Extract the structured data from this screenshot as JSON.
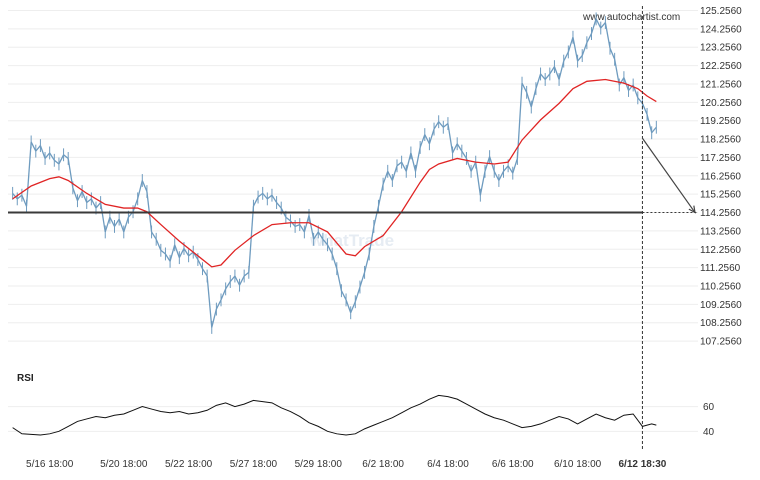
{
  "watermark": {
    "site": "www.autochartist.com",
    "logo": "whatTrade"
  },
  "colors": {
    "price_line": "#6e9bbf",
    "moving_average": "#e02424",
    "support_line": "#3a3a3a",
    "rsi_line": "#111111",
    "forecast_arrow": "#444444",
    "grid": "#eeeeee"
  },
  "chart_data": [
    {
      "type": "line",
      "title": "",
      "xlabel": "",
      "ylabel": "",
      "ylim": [
        106.5,
        125.5
      ],
      "y_ticks": [
        "125.2560",
        "124.2560",
        "123.2560",
        "122.2560",
        "121.2560",
        "120.2560",
        "119.2560",
        "118.2560",
        "117.2560",
        "116.2560",
        "115.2560",
        "114.2560",
        "113.2560",
        "112.2560",
        "111.2560",
        "110.2560",
        "109.2560",
        "108.2560",
        "107.2560"
      ],
      "x_tick_labels": [
        "5/16 18:00",
        "5/20 18:00",
        "5/22 18:00",
        "5/27 18:00",
        "5/29 18:00",
        "6/2 18:00",
        "6/4 18:00",
        "6/6 18:00",
        "6/10 18:00",
        "6/12 18:30"
      ],
      "x_tick_positions": [
        2,
        10,
        17,
        24,
        31,
        38,
        45,
        52,
        59,
        66
      ],
      "x_range": [
        -2.5,
        72
      ],
      "current_bar": 66,
      "support_level": 114.256,
      "forecast": {
        "from": [
          66,
          118.3
        ],
        "to": [
          72,
          114.256
        ]
      },
      "series": [
        {
          "values": [
            [
              -2,
              115.3
            ],
            [
              -1.5,
              115.0
            ],
            [
              -1,
              115.2
            ],
            [
              -0.5,
              114.6
            ],
            [
              0,
              118.1
            ],
            [
              0.5,
              117.6
            ],
            [
              1,
              117.9
            ],
            [
              1.5,
              117.2
            ],
            [
              2,
              117.5
            ],
            [
              2.5,
              117.1
            ],
            [
              3,
              116.9
            ],
            [
              3.5,
              117.4
            ],
            [
              4,
              117.2
            ],
            [
              4.5,
              115.6
            ],
            [
              5,
              114.9
            ],
            [
              5.5,
              115.4
            ],
            [
              6,
              114.8
            ],
            [
              6.5,
              115.0
            ],
            [
              7,
              114.5
            ],
            [
              7.5,
              114.8
            ],
            [
              8,
              113.2
            ],
            [
              8.5,
              114.0
            ],
            [
              9,
              113.5
            ],
            [
              9.5,
              113.9
            ],
            [
              10,
              113.2
            ],
            [
              10.5,
              114.0
            ],
            [
              11,
              114.3
            ],
            [
              11.5,
              115.0
            ],
            [
              12,
              116.0
            ],
            [
              12.5,
              115.4
            ],
            [
              13,
              113.2
            ],
            [
              13.5,
              112.8
            ],
            [
              14,
              112.2
            ],
            [
              14.5,
              112.0
            ],
            [
              15,
              111.6
            ],
            [
              15.5,
              112.5
            ],
            [
              16,
              111.8
            ],
            [
              16.5,
              112.3
            ],
            [
              17,
              111.9
            ],
            [
              17.5,
              112.1
            ],
            [
              18,
              111.7
            ],
            [
              18.5,
              111.2
            ],
            [
              19,
              110.8
            ],
            [
              19.5,
              108.0
            ],
            [
              20,
              109.0
            ],
            [
              20.5,
              109.5
            ],
            [
              21,
              110.1
            ],
            [
              21.5,
              110.5
            ],
            [
              22,
              110.8
            ],
            [
              22.5,
              110.3
            ],
            [
              23,
              110.8
            ],
            [
              23.5,
              111.0
            ],
            [
              24,
              114.6
            ],
            [
              24.5,
              115.1
            ],
            [
              25,
              115.3
            ],
            [
              25.5,
              115.0
            ],
            [
              26,
              115.2
            ],
            [
              26.5,
              114.8
            ],
            [
              27,
              114.5
            ],
            [
              27.5,
              114.0
            ],
            [
              28,
              113.8
            ],
            [
              28.5,
              113.5
            ],
            [
              29,
              113.6
            ],
            [
              29.5,
              113.2
            ],
            [
              30,
              114.1
            ],
            [
              30.5,
              112.8
            ],
            [
              31,
              113.2
            ],
            [
              31.5,
              112.8
            ],
            [
              32,
              112.5
            ],
            [
              32.5,
              112.0
            ],
            [
              33,
              111.2
            ],
            [
              33.5,
              110.0
            ],
            [
              34,
              109.5
            ],
            [
              34.5,
              108.8
            ],
            [
              35,
              109.4
            ],
            [
              35.5,
              110.2
            ],
            [
              36,
              111.0
            ],
            [
              36.5,
              112.0
            ],
            [
              37,
              113.5
            ],
            [
              37.5,
              114.6
            ],
            [
              38,
              115.8
            ],
            [
              38.5,
              116.5
            ],
            [
              39,
              116.0
            ],
            [
              39.5,
              116.8
            ],
            [
              40,
              117.0
            ],
            [
              40.5,
              116.5
            ],
            [
              41,
              117.5
            ],
            [
              41.5,
              116.5
            ],
            [
              42,
              117.8
            ],
            [
              42.5,
              118.5
            ],
            [
              43,
              118.0
            ],
            [
              43.5,
              118.8
            ],
            [
              44,
              119.2
            ],
            [
              44.5,
              118.9
            ],
            [
              45,
              119.1
            ],
            [
              45.5,
              117.5
            ],
            [
              46,
              118.0
            ],
            [
              46.5,
              117.6
            ],
            [
              47,
              117.2
            ],
            [
              47.5,
              116.5
            ],
            [
              48,
              117.0
            ],
            [
              48.5,
              115.2
            ],
            [
              49,
              116.5
            ],
            [
              49.5,
              117.3
            ],
            [
              50,
              116.5
            ],
            [
              50.5,
              116.0
            ],
            [
              51,
              116.5
            ],
            [
              51.5,
              116.8
            ],
            [
              52,
              116.4
            ],
            [
              52.5,
              117.2
            ],
            [
              53,
              121.3
            ],
            [
              53.5,
              120.8
            ],
            [
              54,
              120.0
            ],
            [
              54.5,
              121.0
            ],
            [
              55,
              121.8
            ],
            [
              55.5,
              121.5
            ],
            [
              56,
              121.8
            ],
            [
              56.5,
              122.2
            ],
            [
              57,
              121.5
            ],
            [
              57.5,
              122.5
            ],
            [
              58,
              123.0
            ],
            [
              58.5,
              123.8
            ],
            [
              59,
              122.5
            ],
            [
              59.5,
              122.8
            ],
            [
              60,
              123.5
            ],
            [
              60.5,
              124.0
            ],
            [
              61,
              124.8
            ],
            [
              61.5,
              124.3
            ],
            [
              62,
              124.6
            ],
            [
              62.5,
              123.2
            ],
            [
              63,
              122.6
            ],
            [
              63.5,
              121.2
            ],
            [
              64,
              121.6
            ],
            [
              64.5,
              120.9
            ],
            [
              65,
              121.2
            ],
            [
              65.5,
              120.5
            ],
            [
              66,
              120.2
            ],
            [
              66.5,
              119.6
            ],
            [
              67,
              118.6
            ],
            [
              67.5,
              118.9
            ]
          ]
        },
        {
          "values": [
            [
              -2,
              115.0
            ],
            [
              0,
              115.7
            ],
            [
              2,
              116.1
            ],
            [
              3,
              116.2
            ],
            [
              4,
              116.0
            ],
            [
              6,
              115.3
            ],
            [
              8,
              114.7
            ],
            [
              10,
              114.5
            ],
            [
              11.5,
              114.5
            ],
            [
              12.5,
              114.3
            ],
            [
              14,
              113.6
            ],
            [
              16,
              112.7
            ],
            [
              18,
              111.9
            ],
            [
              19.5,
              111.3
            ],
            [
              20.5,
              111.4
            ],
            [
              22,
              112.2
            ],
            [
              24,
              113.0
            ],
            [
              26,
              113.6
            ],
            [
              28,
              113.7
            ],
            [
              30,
              113.7
            ],
            [
              32,
              113.2
            ],
            [
              33,
              112.6
            ],
            [
              34,
              112.0
            ],
            [
              35,
              111.9
            ],
            [
              36,
              112.4
            ],
            [
              38,
              113.0
            ],
            [
              40,
              114.3
            ],
            [
              42,
              115.9
            ],
            [
              43,
              116.6
            ],
            [
              44,
              116.9
            ],
            [
              46,
              117.2
            ],
            [
              48,
              117.0
            ],
            [
              50,
              116.9
            ],
            [
              51.5,
              117.0
            ],
            [
              53,
              118.2
            ],
            [
              55,
              119.3
            ],
            [
              57,
              120.2
            ],
            [
              58.5,
              121.0
            ],
            [
              60,
              121.4
            ],
            [
              62,
              121.5
            ],
            [
              64,
              121.3
            ],
            [
              65.5,
              121.0
            ],
            [
              66.5,
              120.6
            ],
            [
              67.5,
              120.3
            ]
          ]
        }
      ]
    },
    {
      "type": "line",
      "title": "RSI",
      "xlabel": "",
      "ylabel": "",
      "ylim": [
        33,
        75
      ],
      "y_ticks": [
        "60",
        "40"
      ],
      "series": [
        {
          "values": [
            [
              -2,
              43
            ],
            [
              -1,
              38
            ],
            [
              0,
              37.5
            ],
            [
              1,
              37
            ],
            [
              2,
              38
            ],
            [
              3,
              40
            ],
            [
              4,
              44
            ],
            [
              5,
              48
            ],
            [
              6,
              50
            ],
            [
              7,
              52
            ],
            [
              8,
              51
            ],
            [
              9,
              53
            ],
            [
              10,
              54
            ],
            [
              11,
              57
            ],
            [
              12,
              60
            ],
            [
              13,
              58
            ],
            [
              14,
              56
            ],
            [
              15,
              55
            ],
            [
              16,
              56
            ],
            [
              17,
              54
            ],
            [
              18,
              55
            ],
            [
              19,
              57
            ],
            [
              20,
              61
            ],
            [
              21,
              63
            ],
            [
              22,
              60
            ],
            [
              23,
              62
            ],
            [
              24,
              65
            ],
            [
              25,
              64
            ],
            [
              26,
              63
            ],
            [
              27,
              59
            ],
            [
              28,
              56
            ],
            [
              29,
              52
            ],
            [
              30,
              47
            ],
            [
              31,
              44
            ],
            [
              32,
              40
            ],
            [
              33,
              38
            ],
            [
              34,
              37
            ],
            [
              35,
              38
            ],
            [
              36,
              42
            ],
            [
              37,
              45
            ],
            [
              38,
              48
            ],
            [
              39,
              51
            ],
            [
              40,
              55
            ],
            [
              41,
              59
            ],
            [
              42,
              62
            ],
            [
              43,
              66
            ],
            [
              44,
              69
            ],
            [
              45,
              68
            ],
            [
              46,
              66
            ],
            [
              47,
              62
            ],
            [
              48,
              58
            ],
            [
              49,
              54
            ],
            [
              50,
              51
            ],
            [
              51,
              49
            ],
            [
              52,
              46
            ],
            [
              53,
              43
            ],
            [
              54,
              44
            ],
            [
              55,
              46
            ],
            [
              56,
              49
            ],
            [
              57,
              52
            ],
            [
              58,
              50
            ],
            [
              59,
              46
            ],
            [
              60,
              50
            ],
            [
              61,
              54
            ],
            [
              62,
              51
            ],
            [
              63,
              49
            ],
            [
              64,
              53
            ],
            [
              65,
              54
            ],
            [
              66,
              44
            ],
            [
              67,
              46
            ],
            [
              67.5,
              45
            ]
          ]
        }
      ]
    }
  ]
}
